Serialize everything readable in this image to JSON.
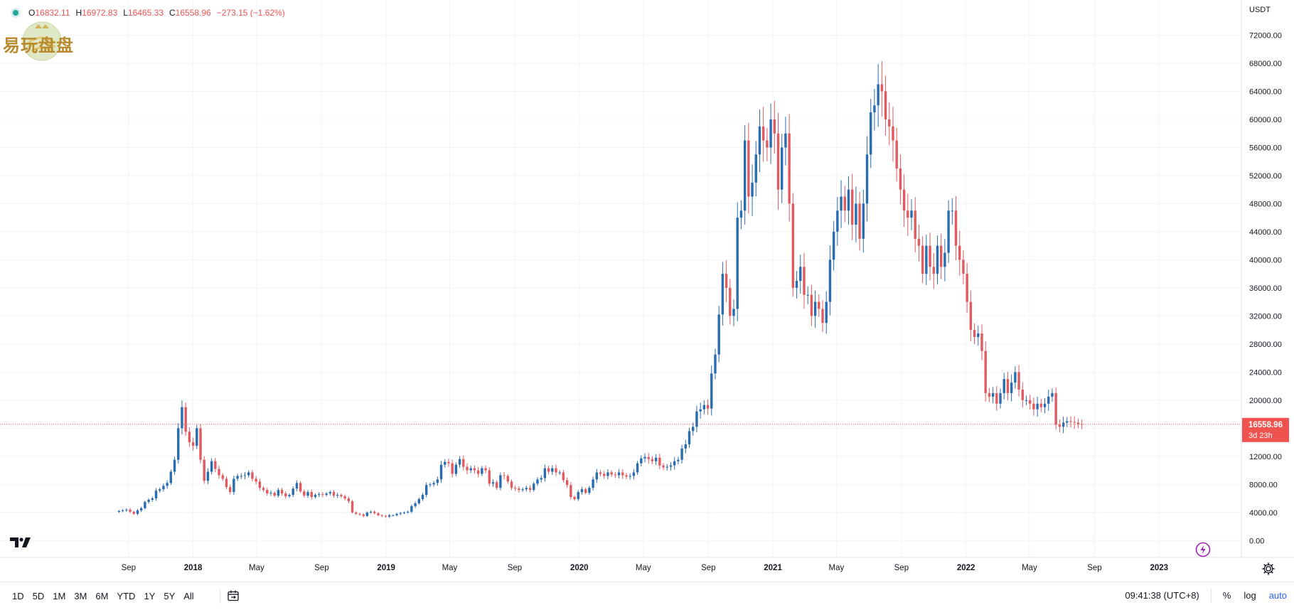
{
  "legend": {
    "open_label": "O",
    "open": "16832.11",
    "high_label": "H",
    "high": "16972.83",
    "low_label": "L",
    "low": "16465.33",
    "close_label": "C",
    "close": "16558.96",
    "change": "−273.15 (−1.62%)"
  },
  "watermark_logo": "易玩盘盘",
  "colors": {
    "up": "#2a6cb0",
    "down": "#e05a5f",
    "price_tag": "#ef5350",
    "grid": "#f0f3fa",
    "accent": "#2962ff"
  },
  "icons": [
    "tradingview-logo-icon",
    "lightning-icon",
    "settings-gear-icon",
    "calendar-range-icon",
    "status-dot-icon"
  ],
  "price_tag": {
    "price": "16558.96",
    "countdown": "3d 23h"
  },
  "bottom_bar": {
    "ranges": [
      "1D",
      "5D",
      "1M",
      "3M",
      "6M",
      "YTD",
      "1Y",
      "5Y",
      "All"
    ],
    "time": "09:41:38 (UTC+8)",
    "percent": "%",
    "log": "log",
    "auto": "auto"
  },
  "chart_data": {
    "type": "candlestick",
    "title": "",
    "ylabel": "USDT",
    "ylim": [
      -2000,
      76000
    ],
    "yticks": [
      0,
      4000,
      8000,
      12000,
      16000,
      20000,
      24000,
      28000,
      32000,
      36000,
      40000,
      44000,
      48000,
      52000,
      56000,
      60000,
      64000,
      68000,
      72000
    ],
    "ytick_labels": [
      "0.00",
      "4000.00",
      "8000.00",
      "12000.00",
      "16000.00",
      "20000.00",
      "24000.00",
      "28000.00",
      "32000.00",
      "36000.00",
      "40000.00",
      "44000.00",
      "48000.00",
      "52000.00",
      "56000.00",
      "60000.00",
      "64000.00",
      "68000.00",
      "72000.00"
    ],
    "xticks": [
      "2017-09-01",
      "2018-01-01",
      "2018-05-01",
      "2018-09-01",
      "2019-01-01",
      "2019-05-01",
      "2019-09-01",
      "2020-01-01",
      "2020-05-01",
      "2020-09-01",
      "2021-01-01",
      "2021-05-01",
      "2021-09-01",
      "2022-01-01",
      "2022-05-01",
      "2022-09-01",
      "2023-01-01"
    ],
    "xtick_labels": [
      "Sep",
      "2018",
      "May",
      "Sep",
      "2019",
      "May",
      "Sep",
      "2020",
      "May",
      "Sep",
      "2021",
      "May",
      "Sep",
      "2022",
      "May",
      "Sep",
      "2023"
    ],
    "last_price": 16558.96,
    "interval": "1W",
    "start_date": "2017-08-14",
    "closes": [
      4200,
      4300,
      4400,
      4100,
      3800,
      4300,
      4600,
      5500,
      5800,
      6000,
      7100,
      7300,
      7800,
      8200,
      9800,
      11500,
      16000,
      19000,
      15500,
      14000,
      13500,
      16000,
      11500,
      8500,
      9800,
      11300,
      10200,
      9300,
      8800,
      7600,
      6900,
      8800,
      9200,
      9200,
      9300,
      9700,
      8800,
      8400,
      7500,
      7200,
      6700,
      6800,
      6400,
      7200,
      6700,
      6300,
      6500,
      7400,
      8200,
      7000,
      6400,
      6900,
      6200,
      6500,
      6600,
      6500,
      6700,
      6900,
      6400,
      6500,
      6300,
      6000,
      5600,
      4000,
      3800,
      3700,
      3500,
      4000,
      4100,
      3900,
      3600,
      3500,
      3400,
      3600,
      3600,
      3800,
      3900,
      4000,
      4100,
      4900,
      5300,
      5900,
      6500,
      7900,
      8000,
      8200,
      8700,
      10800,
      11200,
      11000,
      9500,
      10800,
      11600,
      10500,
      10000,
      10300,
      10000,
      9500,
      10300,
      10000,
      8100,
      8300,
      7500,
      9300,
      9200,
      8400,
      7500,
      7400,
      7200,
      7300,
      7500,
      7200,
      8100,
      8700,
      8900,
      10300,
      9800,
      10300,
      9700,
      9700,
      8600,
      7900,
      6200,
      5900,
      6900,
      7300,
      6800,
      7500,
      8700,
      9700,
      9500,
      9200,
      9700,
      9400,
      9300,
      9700,
      9300,
      9100,
      9200,
      9700,
      11000,
      11700,
      11900,
      11600,
      11300,
      11800,
      10700,
      10400,
      10500,
      10700,
      11300,
      11500,
      13100,
      13700,
      15600,
      16200,
      18400,
      18700,
      19300,
      18800,
      23800,
      26500,
      32200,
      38000,
      36000,
      32000,
      33000,
      46000,
      47000,
      57000,
      49000,
      51000,
      55000,
      59000,
      57000,
      56000,
      60000,
      58000,
      50000,
      56000,
      58000,
      48000,
      36000,
      37000,
      39000,
      35000,
      35000,
      32000,
      34000,
      33000,
      31000,
      34000,
      40000,
      44000,
      47000,
      49000,
      47000,
      50000,
      45000,
      48000,
      43000,
      48000,
      55000,
      61000,
      62000,
      65000,
      64000,
      60000,
      59000,
      57000,
      53000,
      50000,
      47000,
      46000,
      47000,
      43000,
      42000,
      38000,
      42000,
      39000,
      38000,
      42000,
      39000,
      41000,
      47000,
      47000,
      42000,
      40000,
      38000,
      34000,
      30000,
      29000,
      29500,
      27000,
      21000,
      20500,
      21000,
      19500,
      21000,
      23000,
      21000,
      22500,
      24000,
      21500,
      20000,
      20000,
      19500,
      18700,
      19500,
      19000,
      19500,
      20500,
      21000,
      16500,
      16200,
      16800,
      17000,
      16900,
      16800,
      16600,
      16558.96
    ]
  }
}
